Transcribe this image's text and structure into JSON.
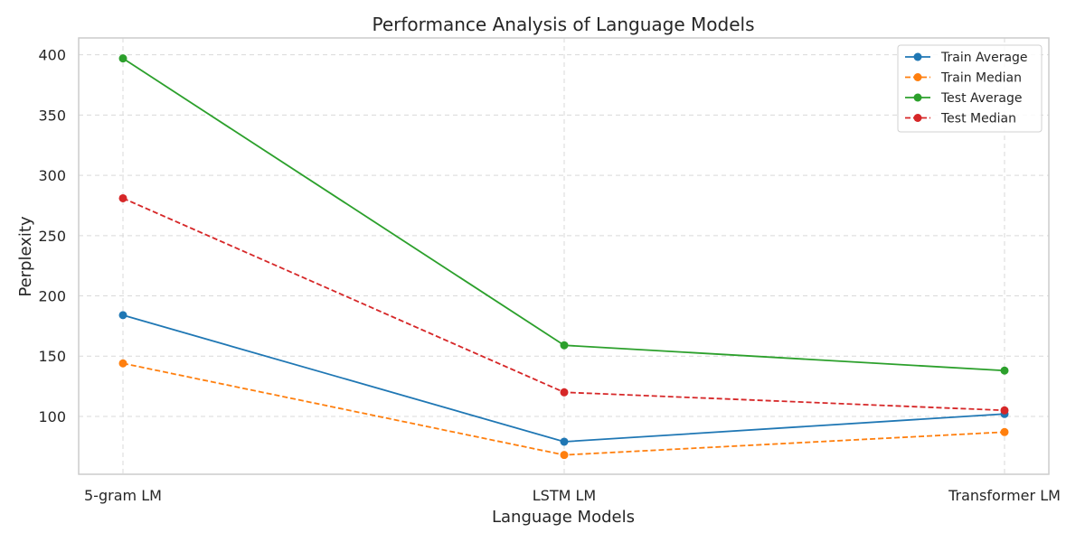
{
  "chart_data": {
    "type": "line",
    "title": "Performance Analysis of Language Models",
    "xlabel": "Language Models",
    "ylabel": "Perplexity",
    "categories": [
      "5-gram LM",
      "LSTM LM",
      "Transformer LM"
    ],
    "ylim": [
      52,
      414
    ],
    "yticks": [
      100,
      150,
      200,
      250,
      300,
      350,
      400
    ],
    "grid": true,
    "legend_position": "top-right",
    "series": [
      {
        "name": "Train Average",
        "values": [
          184,
          79,
          102
        ],
        "color": "#1f77b4",
        "dashed": false
      },
      {
        "name": "Train Median",
        "values": [
          144,
          68,
          87
        ],
        "color": "#ff7f0e",
        "dashed": true
      },
      {
        "name": "Test Average",
        "values": [
          397,
          159,
          138
        ],
        "color": "#2ca02c",
        "dashed": false
      },
      {
        "name": "Test Median",
        "values": [
          281,
          120,
          105
        ],
        "color": "#d62728",
        "dashed": true
      }
    ]
  }
}
